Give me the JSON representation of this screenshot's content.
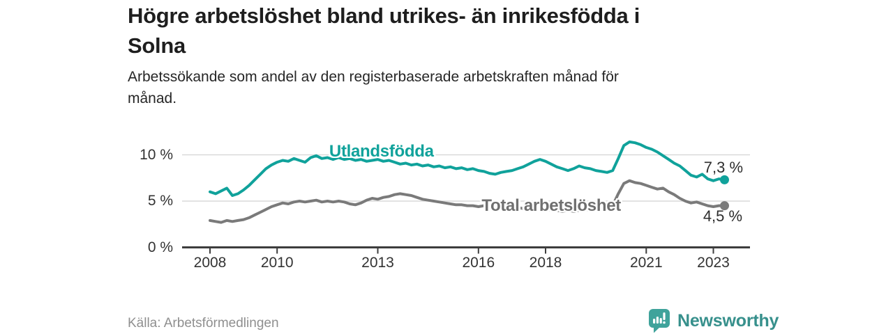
{
  "header": {
    "title": "Högre arbetslöshet bland utrikes- än inrikesfödda i Solna",
    "title_lines": [
      "Högre arbetslöshet bland utrikes- än inrikesfödda i",
      "Solna"
    ],
    "subtitle": "Arbetssökande som andel av den registerbaserade arbetskraften månad för månad.",
    "subtitle_lines": [
      "Arbetssökande som andel av den registerbaserade arbetskraften månad för",
      "månad."
    ]
  },
  "chart_data": {
    "type": "line",
    "title": "Högre arbetslöshet bland utrikes- än inrikesfödda i Solna",
    "subtitle": "Arbetssökande som andel av den registerbaserade arbetskraften månad för månad.",
    "source": "Källa: Arbetsförmedlingen",
    "x_start": 2008.0,
    "x_step": 0.16667,
    "xlim": [
      2007.15,
      2024.1
    ],
    "ylim": [
      0,
      12.4
    ],
    "grid": "horizontal",
    "grid_color": "#d9d9d9",
    "axis_color": "#3d3d3d",
    "tick_label_color": "#333333",
    "yticks": [
      {
        "value": 0,
        "label": "0 %"
      },
      {
        "value": 5,
        "label": "5 %"
      },
      {
        "value": 10,
        "label": "10 %"
      }
    ],
    "xticks": [
      {
        "value": 2008,
        "label": "2008"
      },
      {
        "value": 2010,
        "label": "2010"
      },
      {
        "value": 2013,
        "label": "2013"
      },
      {
        "value": 2016,
        "label": "2016"
      },
      {
        "value": 2018,
        "label": "2018"
      },
      {
        "value": 2021,
        "label": "2021"
      },
      {
        "value": 2023,
        "label": "2023"
      }
    ],
    "series": [
      {
        "name": "Total arbetslöshet",
        "color": "#7a7a7a",
        "label_color": "#6f6f6f",
        "label_pos": {
          "x": 2018.17,
          "y": 4.47
        },
        "end_value": 4.5,
        "end_label": "4,5 %",
        "end_label_pos": {
          "x": 2023.28,
          "y": 3.35
        },
        "values": [
          2.9,
          2.8,
          2.7,
          2.9,
          2.8,
          2.9,
          3.0,
          3.2,
          3.5,
          3.8,
          4.1,
          4.4,
          4.6,
          4.8,
          4.7,
          4.9,
          5.0,
          4.9,
          5.0,
          5.1,
          4.9,
          5.0,
          4.9,
          5.0,
          4.9,
          4.7,
          4.6,
          4.8,
          5.1,
          5.3,
          5.2,
          5.4,
          5.5,
          5.7,
          5.8,
          5.7,
          5.6,
          5.4,
          5.2,
          5.1,
          5.0,
          4.9,
          4.8,
          4.7,
          4.6,
          4.6,
          4.5,
          4.5,
          4.4,
          4.5,
          4.4,
          4.3,
          4.4,
          4.3,
          4.2,
          4.3,
          4.2,
          4.1,
          4.2,
          4.1,
          4.0,
          4.1,
          4.0,
          3.9,
          4.0,
          3.9,
          4.0,
          4.1,
          4.0,
          4.1,
          4.2,
          4.3,
          4.5,
          5.8,
          6.9,
          7.2,
          7.0,
          6.9,
          6.7,
          6.5,
          6.3,
          6.4,
          6.0,
          5.7,
          5.3,
          5.0,
          4.8,
          4.9,
          4.7,
          4.5,
          4.4,
          4.5,
          4.5
        ]
      },
      {
        "name": "Utlandsfödda",
        "color": "#10A29B",
        "label_color": "#10A29B",
        "label_pos": {
          "x": 2013.11,
          "y": 10.34
        },
        "end_value": 7.3,
        "end_label": "7,3 %",
        "end_label_pos": {
          "x": 2023.3,
          "y": 8.62
        },
        "values": [
          6.0,
          5.8,
          6.1,
          6.4,
          5.6,
          5.8,
          6.2,
          6.7,
          7.3,
          7.9,
          8.5,
          8.9,
          9.2,
          9.4,
          9.3,
          9.6,
          9.4,
          9.2,
          9.7,
          9.9,
          9.6,
          9.7,
          9.5,
          9.7,
          9.5,
          9.6,
          9.4,
          9.5,
          9.3,
          9.4,
          9.5,
          9.3,
          9.4,
          9.2,
          9.0,
          9.1,
          8.9,
          9.0,
          8.8,
          8.9,
          8.7,
          8.8,
          8.6,
          8.7,
          8.5,
          8.6,
          8.4,
          8.5,
          8.3,
          8.2,
          8.0,
          7.9,
          8.1,
          8.2,
          8.3,
          8.5,
          8.7,
          9.0,
          9.3,
          9.5,
          9.3,
          9.0,
          8.7,
          8.5,
          8.3,
          8.5,
          8.8,
          8.6,
          8.5,
          8.3,
          8.2,
          8.1,
          8.3,
          9.6,
          11.0,
          11.4,
          11.3,
          11.1,
          10.8,
          10.6,
          10.3,
          9.9,
          9.5,
          9.1,
          8.8,
          8.3,
          7.8,
          7.6,
          7.9,
          7.4,
          7.2,
          7.4,
          7.3
        ]
      }
    ]
  },
  "footer": {
    "source": "Källa: Arbetsförmedlingen",
    "logo_text": "Newsworthy"
  },
  "colors": {
    "accent_teal": "#10A29B",
    "series_gray": "#7a7a7a",
    "logo_icon_teal": "#3FA39B",
    "logo_text_teal": "#37908C"
  }
}
